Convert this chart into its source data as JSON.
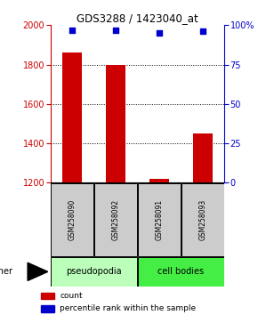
{
  "title": "GDS3288 / 1423040_at",
  "samples": [
    "GSM258090",
    "GSM258092",
    "GSM258091",
    "GSM258093"
  ],
  "bar_values": [
    1860,
    1800,
    1220,
    1450
  ],
  "percentile_values": [
    97,
    97,
    95,
    96
  ],
  "ylim_left": [
    1200,
    2000
  ],
  "ylim_right": [
    0,
    100
  ],
  "yticks_left": [
    1200,
    1400,
    1600,
    1800,
    2000
  ],
  "yticks_right": [
    0,
    25,
    50,
    75,
    100
  ],
  "bar_color": "#cc0000",
  "scatter_color": "#0000cc",
  "left_axis_color": "#cc0000",
  "right_axis_color": "#0000cc",
  "groups": [
    {
      "label": "pseudopodia",
      "indices": [
        0,
        1
      ],
      "color": "#bbffbb"
    },
    {
      "label": "cell bodies",
      "indices": [
        2,
        3
      ],
      "color": "#44ee44"
    }
  ],
  "other_label": "other",
  "legend_count_label": "count",
  "legend_pct_label": "percentile rank within the sample",
  "bar_width": 0.45,
  "sample_box_color": "#cccccc",
  "gridline_ticks": [
    1400,
    1600,
    1800
  ]
}
